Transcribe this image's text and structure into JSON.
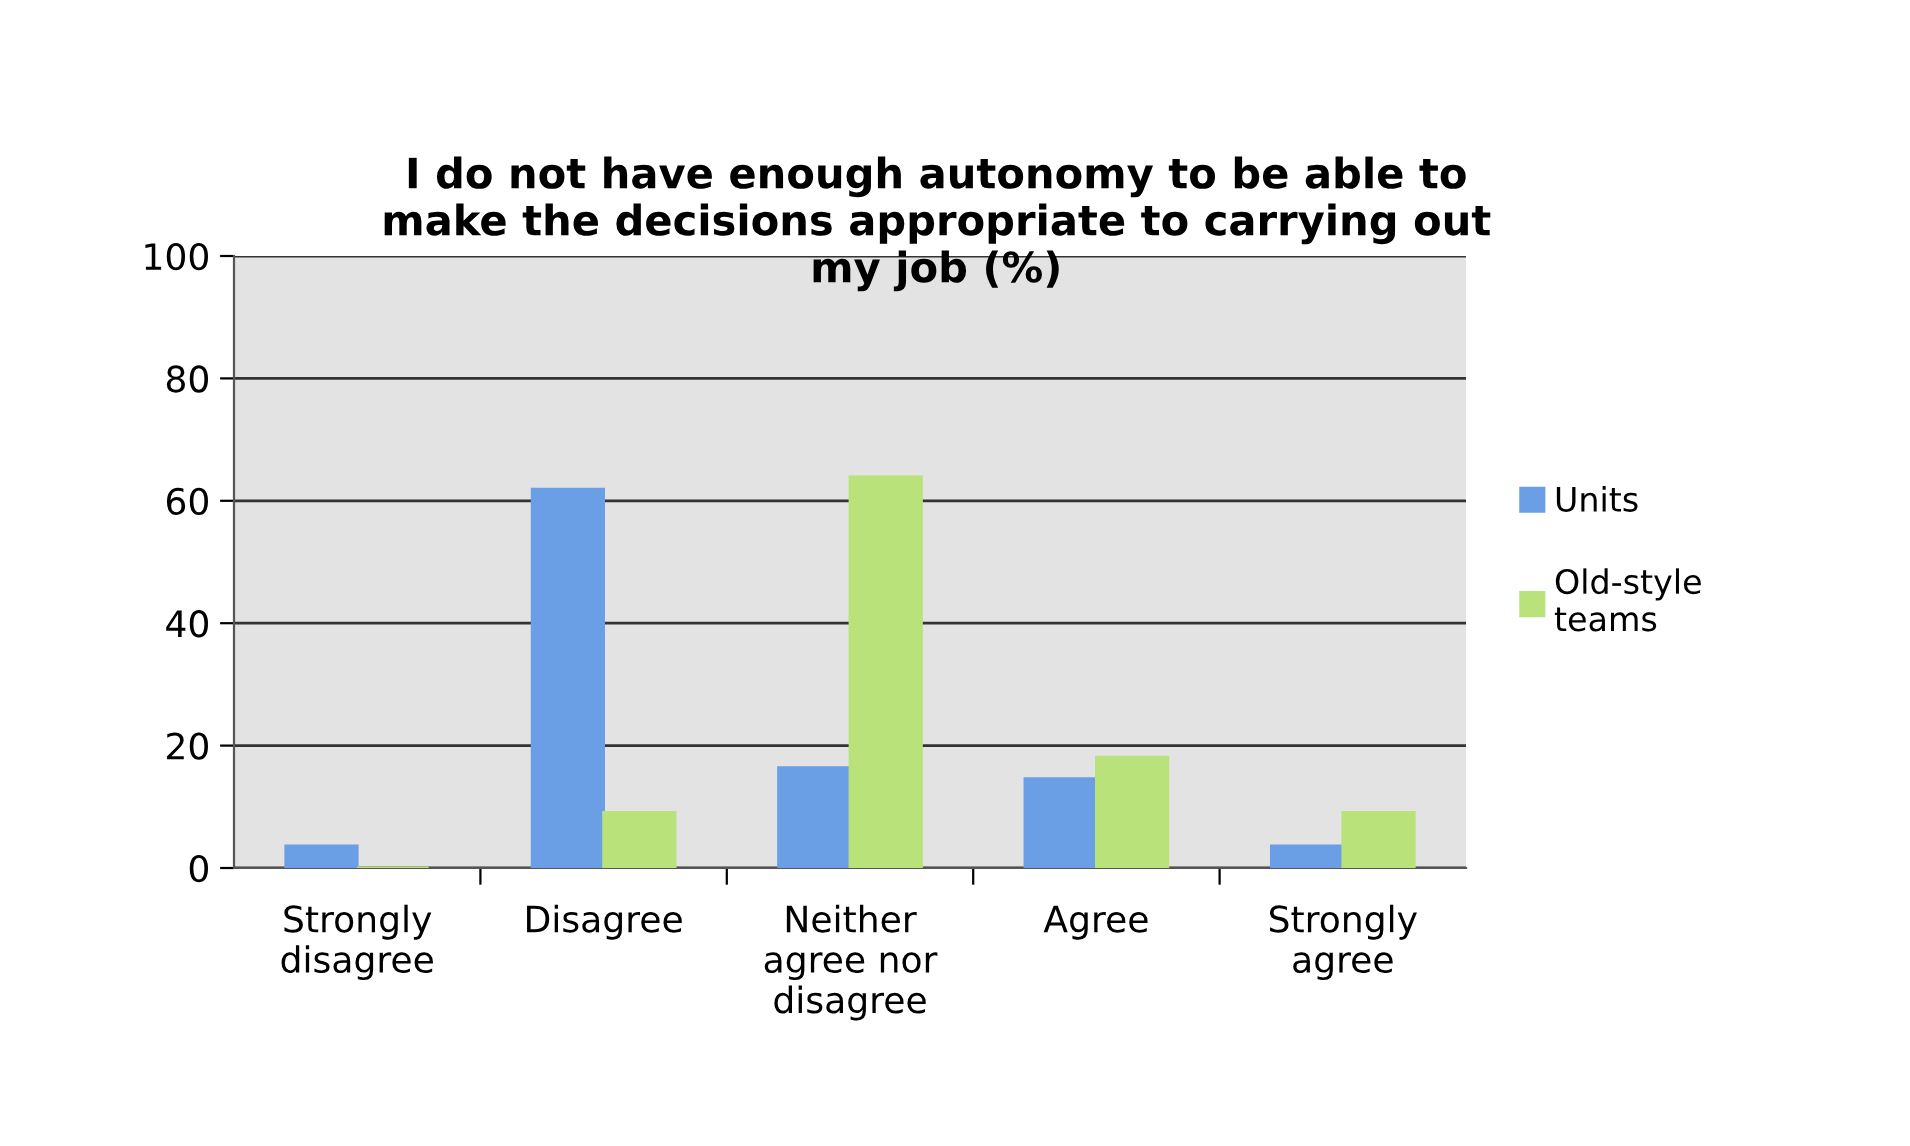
{
  "chart_data": {
    "type": "bar",
    "title": "I do not have enough autonomy to be able to\nmake the decisions appropriate to carrying out\nmy job (%)",
    "categories": [
      "Strongly\ndisagree",
      "Disagree",
      "Neither\nagree nor\ndisagree",
      "Agree",
      "Strongly\nagree"
    ],
    "series": [
      {
        "name": "Units",
        "color": "#6a9fe6",
        "values": [
          3.6,
          61.9,
          16.4,
          14.6,
          3.6
        ]
      },
      {
        "name": "Old-style\nteams",
        "color": "#b9e27a",
        "values": [
          0,
          9.1,
          63.9,
          18.1,
          9.1
        ]
      }
    ],
    "ylim": [
      0,
      100
    ],
    "yticks": [
      0,
      20,
      40,
      60,
      80,
      100
    ],
    "grid": "y",
    "legend": "right"
  }
}
